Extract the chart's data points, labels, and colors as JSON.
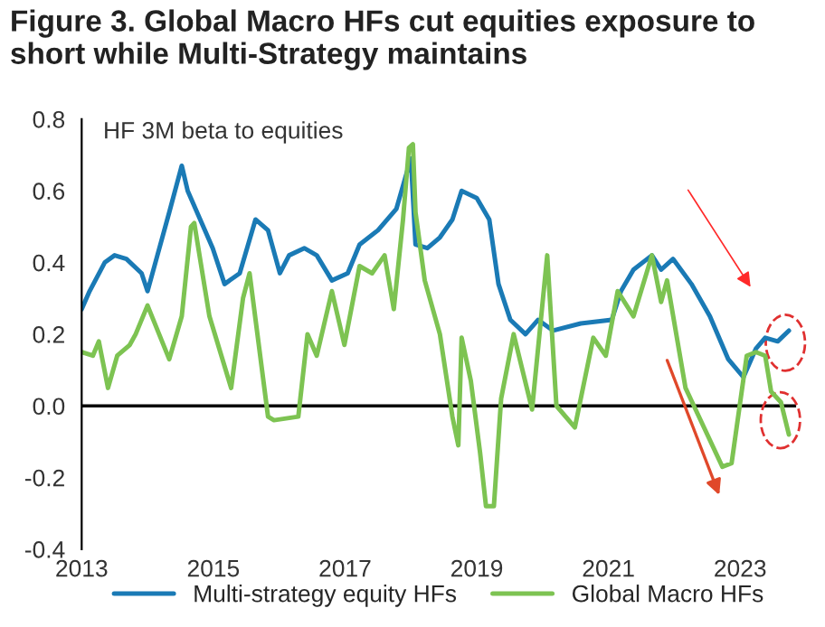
{
  "chart_data": {
    "type": "line",
    "title": "Figure 3. Global Macro HFs cut equities exposure to short while Multi-Strategy maintains",
    "annotations": [
      "HF 3M beta to equities"
    ],
    "series": [
      {
        "name": "Multi-strategy equity HFs",
        "color": "#1a7ab5",
        "x": [
          2013.0,
          2013.12,
          2013.35,
          2013.5,
          2013.68,
          2013.91,
          2014.0,
          2014.15,
          2014.33,
          2014.52,
          2014.61,
          2014.8,
          2014.99,
          2015.17,
          2015.4,
          2015.64,
          2015.83,
          2016.01,
          2016.15,
          2016.38,
          2016.57,
          2016.8,
          2017.04,
          2017.22,
          2017.5,
          2017.78,
          2017.92,
          2018.0,
          2018.07,
          2018.25,
          2018.44,
          2018.63,
          2018.77,
          2019.0,
          2019.19,
          2019.33,
          2019.51,
          2019.74,
          2019.93,
          2020.16,
          2020.58,
          2021.05,
          2021.19,
          2021.38,
          2021.66,
          2021.8,
          2021.98,
          2022.26,
          2022.54,
          2022.82,
          2023.05,
          2023.24,
          2023.38,
          2023.57,
          2023.74
        ],
        "values": [
          0.27,
          0.32,
          0.4,
          0.42,
          0.41,
          0.37,
          0.32,
          0.42,
          0.54,
          0.67,
          0.6,
          0.52,
          0.44,
          0.34,
          0.37,
          0.52,
          0.49,
          0.37,
          0.42,
          0.44,
          0.42,
          0.35,
          0.37,
          0.45,
          0.49,
          0.55,
          0.64,
          0.69,
          0.45,
          0.44,
          0.47,
          0.52,
          0.6,
          0.58,
          0.52,
          0.34,
          0.24,
          0.2,
          0.24,
          0.21,
          0.23,
          0.24,
          0.32,
          0.38,
          0.42,
          0.38,
          0.41,
          0.34,
          0.25,
          0.13,
          0.08,
          0.16,
          0.19,
          0.18,
          0.21
        ]
      },
      {
        "name": "Global Macro HFs",
        "color": "#7dc352",
        "x": [
          2013.0,
          2013.17,
          2013.26,
          2013.4,
          2013.54,
          2013.73,
          2013.82,
          2014.0,
          2014.33,
          2014.52,
          2014.66,
          2014.71,
          2014.94,
          2015.27,
          2015.45,
          2015.55,
          2015.83,
          2015.92,
          2016.29,
          2016.43,
          2016.57,
          2016.8,
          2016.99,
          2017.22,
          2017.41,
          2017.6,
          2017.74,
          2017.88,
          2017.97,
          2018.03,
          2018.07,
          2018.21,
          2018.44,
          2018.63,
          2018.72,
          2018.77,
          2018.91,
          2019.05,
          2019.14,
          2019.26,
          2019.37,
          2019.56,
          2019.84,
          2020.07,
          2020.21,
          2020.49,
          2020.77,
          2020.96,
          2021.14,
          2021.38,
          2021.66,
          2021.8,
          2021.89,
          2022.17,
          2022.45,
          2022.73,
          2022.87,
          2023.1,
          2023.24,
          2023.38,
          2023.47,
          2023.62,
          2023.74
        ],
        "values": [
          0.15,
          0.14,
          0.18,
          0.05,
          0.14,
          0.17,
          0.2,
          0.28,
          0.13,
          0.25,
          0.5,
          0.51,
          0.25,
          0.05,
          0.3,
          0.37,
          -0.03,
          -0.04,
          -0.03,
          0.2,
          0.14,
          0.32,
          0.17,
          0.39,
          0.37,
          0.42,
          0.27,
          0.52,
          0.72,
          0.73,
          0.54,
          0.35,
          0.2,
          -0.03,
          -0.11,
          0.19,
          0.07,
          -0.13,
          -0.28,
          -0.28,
          0.02,
          0.2,
          -0.01,
          0.42,
          0.0,
          -0.06,
          0.19,
          0.14,
          0.32,
          0.25,
          0.42,
          0.29,
          0.35,
          0.05,
          -0.06,
          -0.17,
          -0.16,
          0.14,
          0.15,
          0.14,
          0.04,
          0.01,
          -0.08
        ]
      }
    ],
    "xlim": [
      2013,
      2023.85
    ],
    "xticks": [
      2013,
      2015,
      2017,
      2019,
      2021,
      2023
    ],
    "ylim": [
      -0.4,
      0.8
    ],
    "yticks": [
      {
        "value": -0.4,
        "label": "-0.4"
      },
      {
        "value": -0.2,
        "label": "-0.2"
      },
      {
        "value": 0,
        "label": "0.0"
      },
      {
        "value": 0.2,
        "label": "0.2"
      },
      {
        "value": 0.4,
        "label": "0.4"
      },
      {
        "value": 0.6,
        "label": "0.6"
      },
      {
        "value": 0.8,
        "label": "0.8"
      }
    ],
    "ref_lines": [
      {
        "axis": "y",
        "value": 0,
        "color": "#000000"
      }
    ],
    "grid": false,
    "legend": "bottom",
    "line_style": "solid",
    "marker": "none"
  }
}
